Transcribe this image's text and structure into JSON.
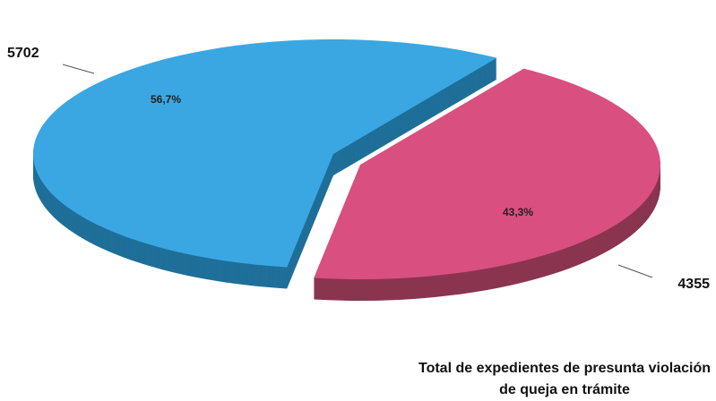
{
  "chart_data": {
    "type": "pie3d",
    "values": [
      5702,
      4355
    ],
    "percentages": [
      56.7,
      43.3
    ],
    "percentage_labels": [
      "56,7%",
      "43,3%"
    ],
    "colors": [
      "#3aa7e2",
      "#d84f80"
    ],
    "side_colors": [
      "#1f6f99",
      "#8a3550"
    ],
    "title": "Total de expedientes de presunta violación de queja en trámite"
  }
}
